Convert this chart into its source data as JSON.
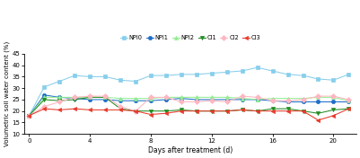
{
  "x": [
    0,
    1,
    2,
    3,
    4,
    5,
    6,
    7,
    8,
    9,
    10,
    11,
    12,
    13,
    14,
    15,
    16,
    17,
    18,
    19,
    20,
    21
  ],
  "NPI0": [
    18.0,
    30.5,
    33.0,
    35.5,
    35.0,
    35.0,
    33.5,
    33.0,
    35.5,
    35.5,
    36.0,
    36.0,
    36.5,
    37.0,
    37.5,
    39.0,
    37.5,
    36.0,
    35.5,
    34.0,
    33.5,
    36.0
  ],
  "NPI1": [
    18.0,
    27.0,
    26.0,
    25.5,
    25.0,
    25.0,
    24.5,
    24.5,
    24.5,
    25.0,
    25.5,
    25.0,
    25.0,
    25.0,
    25.0,
    25.0,
    24.5,
    24.0,
    24.0,
    24.0,
    24.0,
    24.0
  ],
  "NPI2": [
    18.0,
    26.0,
    26.0,
    26.0,
    26.0,
    26.0,
    25.5,
    25.5,
    25.5,
    26.0,
    26.0,
    26.0,
    26.0,
    26.0,
    25.5,
    25.0,
    25.5,
    25.5,
    25.5,
    26.0,
    26.0,
    24.5
  ],
  "CI1": [
    18.0,
    25.0,
    24.5,
    25.0,
    26.0,
    26.0,
    21.0,
    20.0,
    20.0,
    20.0,
    20.5,
    20.0,
    20.0,
    20.0,
    20.5,
    20.0,
    21.0,
    21.0,
    20.0,
    19.0,
    20.5,
    21.0
  ],
  "CI2": [
    18.0,
    22.0,
    24.0,
    26.0,
    26.5,
    26.5,
    22.0,
    20.0,
    26.0,
    26.0,
    24.0,
    24.0,
    24.5,
    24.0,
    26.5,
    26.0,
    24.5,
    24.5,
    25.0,
    26.5,
    26.5,
    25.0
  ],
  "CI3": [
    18.0,
    21.0,
    20.5,
    21.0,
    20.5,
    20.5,
    20.5,
    20.0,
    18.5,
    19.0,
    20.0,
    20.0,
    20.0,
    20.0,
    20.5,
    20.0,
    20.0,
    20.0,
    20.0,
    16.0,
    18.0,
    21.0
  ],
  "colors": {
    "NPI0": "#87CEEB",
    "NPI1": "#1E6EC8",
    "NPI2": "#90EE90",
    "CI1": "#228B22",
    "CI2": "#FFB6C1",
    "CI3": "#E8392A"
  },
  "markers": {
    "NPI0": "s",
    "NPI1": "o",
    "NPI2": "^",
    "CI1": "v",
    "CI2": "D",
    "CI3": "<"
  },
  "xlabel": "Days after treatment (d)",
  "ylabel": "Volumetric soil water content (%)",
  "ylim": [
    10,
    45
  ],
  "yticks": [
    10,
    15,
    20,
    25,
    30,
    35,
    40,
    45
  ],
  "xticks": [
    0,
    4,
    8,
    12,
    16,
    20
  ],
  "series_keys": [
    "NPI0",
    "NPI1",
    "NPI2",
    "CI1",
    "CI2",
    "CI3"
  ]
}
